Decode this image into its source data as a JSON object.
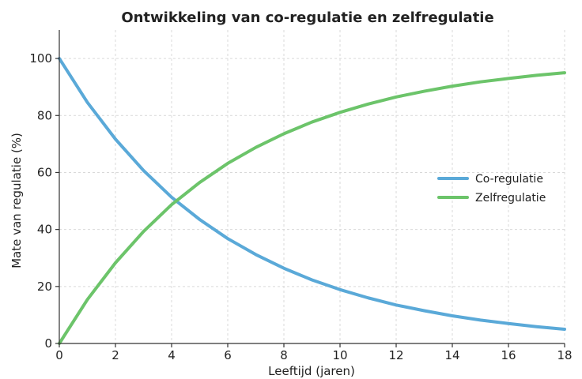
{
  "chart_data": {
    "type": "line",
    "title": "Ontwikkeling van co-regulatie en zelfregulatie",
    "xlabel": "Leeftijd (jaren)",
    "ylabel": "Mate van regulatie (%)",
    "xlim": [
      0,
      18
    ],
    "ylim": [
      0,
      110
    ],
    "xticks": [
      0,
      2,
      4,
      6,
      8,
      10,
      12,
      14,
      16,
      18
    ],
    "yticks": [
      0,
      20,
      40,
      60,
      80,
      100
    ],
    "x": [
      0,
      1,
      2,
      3,
      4,
      5,
      6,
      7,
      8,
      9,
      10,
      11,
      12,
      13,
      14,
      15,
      16,
      17,
      18
    ],
    "series": [
      {
        "name": "Co-regulatie",
        "color": "#5aa9d8",
        "values": [
          100,
          84.6,
          71.7,
          60.7,
          51.3,
          43.5,
          36.8,
          31.2,
          26.4,
          22.3,
          18.9,
          16.0,
          13.5,
          11.5,
          9.7,
          8.2,
          7.0,
          5.9,
          5.0
        ]
      },
      {
        "name": "Zelfregulatie",
        "color": "#6cc46a",
        "values": [
          0,
          15.4,
          28.3,
          39.3,
          48.7,
          56.5,
          63.2,
          68.8,
          73.6,
          77.7,
          81.1,
          84.0,
          86.5,
          88.5,
          90.3,
          91.8,
          93.0,
          94.1,
          95.0
        ]
      }
    ],
    "grid": true,
    "legend_position": "right"
  }
}
